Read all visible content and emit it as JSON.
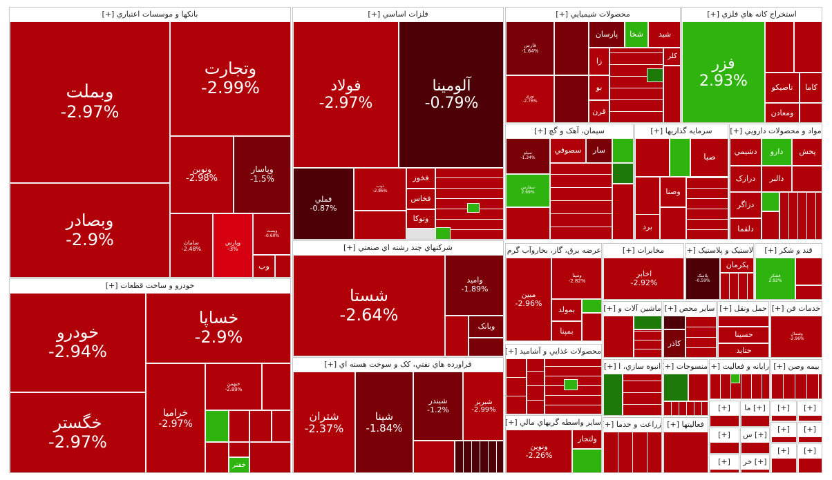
{
  "sections": {
    "banks": "بانکها و موسسات اعتباري [+]",
    "metals": "فلزات اساسي [+]",
    "chem": "محصولات شيميايي [+]",
    "mining": "استخراج کانه هاي فلزي [+]",
    "cement": "سيمان، آهک و گچ [+]",
    "invest": "سرمايه گذاريها [+]",
    "pharma": "مواد و محصولات دارويي [+]",
    "auto": "خودرو و ساخت قطعات [+]",
    "multi": "شرکتهاي چند رشته اي صنعتي [+]",
    "oil": "فراورده هاي نفتي، کک و سوخت هسته اي [+]",
    "utility": "عرضه برق، گاز، بخاروآب گرم [+]",
    "telecom": "مخابرات [+]",
    "rubber": "لاستيک و پلاستيک [+]",
    "sugar": "قند و شکر [+]",
    "machinery": "ماشين آلات و [+]",
    "other_fin": "ساير محص [+]",
    "transport": "حمل ونقل [+]",
    "tech": "خدمات فن [+]",
    "food": "محصولات غذايي و آشاميد [+]",
    "mass": "انبوه سازي، ا [+]",
    "textile": "منسوجات [+]",
    "info": "رايانه و فعاليت [+]",
    "insurance": "بيمه وصن [+]",
    "finance": "ساير واسطه گريهاي مالي [+]",
    "agri": "زراعت و خدما [+]",
    "activities": "فعاليتها [+]",
    "small_a": "[+]",
    "small_b": "[+] ما",
    "small_c": "[+]",
    "small_d": "[+]",
    "small_e": "[+]",
    "small_f": "[+]",
    "small_g": "[+]",
    "small_h": "[+]",
    "small_i": "[+]",
    "small_j": "[+]",
    "small_k": "[+] خر",
    "small_l": "[+] س"
  },
  "tiles": {
    "vabmellat": {
      "n": "وبملت",
      "p": "-2.97%"
    },
    "vatejarat": {
      "n": "وتجارت",
      "p": "-2.99%"
    },
    "vebsader": {
      "n": "وبصادر",
      "p": "-2.9%"
    },
    "vnovin": {
      "n": "ونوين",
      "p": "-2.98%"
    },
    "vyasar": {
      "n": "وپاسار",
      "p": "-1.5%"
    },
    "samand": {
      "n": "سامان",
      "p": "-2.48%"
    },
    "vparsi": {
      "n": "وپارس",
      "p": "-3%"
    },
    "vpost": {
      "n": "وپست",
      "p": "-0.60%"
    },
    "vob": {
      "n": "وب",
      "p": ""
    },
    "foolad": {
      "n": "فولاد",
      "p": "-2.97%"
    },
    "aluminum": {
      "n": "آلومينا",
      "p": "-0.79%"
    },
    "fameli": {
      "n": "فملي",
      "p": "-0.87%"
    },
    "fkhouz": {
      "n": "فخوز",
      "p": ""
    },
    "fkhas": {
      "n": "فخاس",
      "p": ""
    },
    "vtoka": {
      "n": "وتوکا",
      "p": ""
    },
    "zob": {
      "n": "ذوب",
      "p": "-2.86%"
    },
    "faroos": {
      "n": "فارس",
      "p": "-1.64%"
    },
    "noori": {
      "n": "نوري",
      "p": "-2.76%"
    },
    "parsan": {
      "n": "پارسان",
      "p": ""
    },
    "shakhes": {
      "n": "شخا",
      "p": ""
    },
    "shsid": {
      "n": "شيد",
      "p": ""
    },
    "za": {
      "n": "زا",
      "p": ""
    },
    "bo": {
      "n": "بو",
      "p": ""
    },
    "qarn": {
      "n": "قرن",
      "p": ""
    },
    "kal": {
      "n": "کلر",
      "p": ""
    },
    "fazar": {
      "n": "فزر",
      "p": "2.93%"
    },
    "tasiko": {
      "n": "تاصيکو",
      "p": ""
    },
    "kama": {
      "n": "کاما",
      "p": ""
    },
    "vamadan": {
      "n": "ومعادن",
      "p": ""
    },
    "sosoufi": {
      "n": "سصوفي",
      "p": ""
    },
    "sar": {
      "n": "سار",
      "p": ""
    },
    "sblo": {
      "n": "سيلو",
      "p": "-1.34%"
    },
    "sfars": {
      "n": "سفارس",
      "p": "2.69%"
    },
    "vsina": {
      "n": "وصنا",
      "p": ""
    },
    "saba": {
      "n": "صبا",
      "p": ""
    },
    "sburd": {
      "n": "برد",
      "p": ""
    },
    "dashimi": {
      "n": "دشيمي",
      "p": ""
    },
    "daru": {
      "n": "دارو",
      "p": ""
    },
    "pakhsh": {
      "n": "پخش",
      "p": ""
    },
    "darazak": {
      "n": "درازک",
      "p": ""
    },
    "dalbar": {
      "n": "دالبر",
      "p": ""
    },
    "dzagr": {
      "n": "دزاگر",
      "p": ""
    },
    "dlqma": {
      "n": "دلقما",
      "p": ""
    },
    "khodro": {
      "n": "خودرو",
      "p": "-2.94%"
    },
    "khsapa": {
      "n": "خساپا",
      "p": "-2.9%"
    },
    "khgostar": {
      "n": "خگستر",
      "p": "-2.97%"
    },
    "khrampa": {
      "n": "خراميا",
      "p": "-2.97%"
    },
    "khbahman": {
      "n": "خبهمن",
      "p": "-2.89%"
    },
    "khafar": {
      "n": "خفنر",
      "p": ""
    },
    "shasta": {
      "n": "شستا",
      "p": "-2.64%"
    },
    "vamid": {
      "n": "واميد",
      "p": "-1.89%"
    },
    "vbank": {
      "n": "وبانک",
      "p": ""
    },
    "shtran": {
      "n": "شتران",
      "p": "-2.37%"
    },
    "shpna": {
      "n": "شپنا",
      "p": "-1.84%"
    },
    "shbndr": {
      "n": "شبندر",
      "p": "-1.2%"
    },
    "shbriz": {
      "n": "شبريز",
      "p": "-2.99%"
    },
    "mabin": {
      "n": "مبين",
      "p": "-2.96%"
    },
    "vmapna": {
      "n": "ومپنا",
      "p": "-2.82%"
    },
    "bmold": {
      "n": "بمولد",
      "p": ""
    },
    "bmpna": {
      "n": "بمپنا",
      "p": ""
    },
    "akhaber": {
      "n": "اخابر",
      "p": "-2.92%"
    },
    "pkerman": {
      "n": "پکرمان",
      "p": ""
    },
    "pbalar": {
      "n": "پلاسک",
      "p": "-0.59%"
    },
    "qshakr": {
      "n": "قشکر",
      "p": "2.92%"
    },
    "kaazar": {
      "n": "کاذر",
      "p": ""
    },
    "hasina": {
      "n": "حسينا",
      "p": ""
    },
    "hetayad": {
      "n": "حتايد",
      "p": ""
    },
    "vnovin2": {
      "n": "ونوين",
      "p": "-2.26%"
    },
    "vnajar": {
      "n": "ولتجار",
      "p": ""
    },
    "gtek": {
      "n": "وشمال",
      "p": "-2.96%"
    }
  }
}
